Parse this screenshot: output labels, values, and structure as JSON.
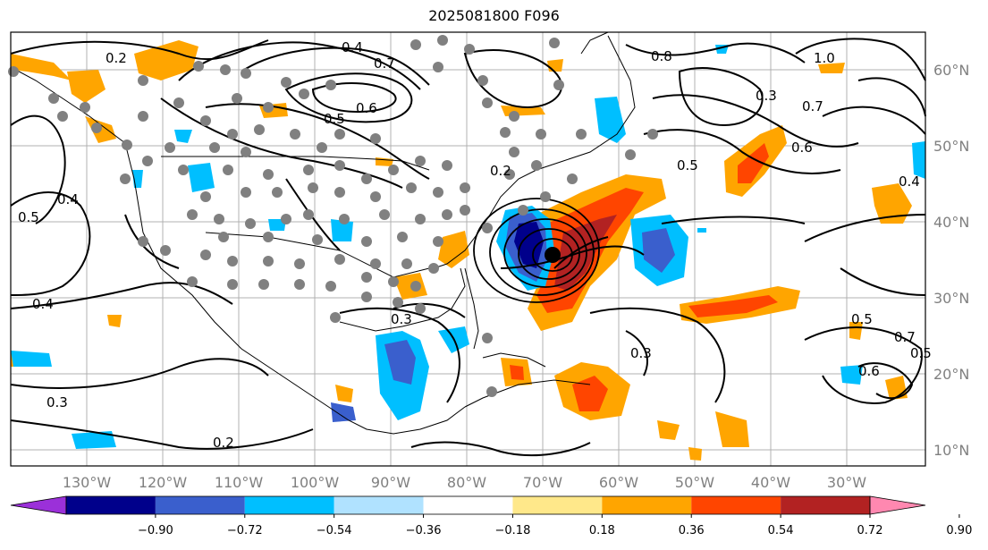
{
  "title": "2025081800 F096",
  "axes": {
    "lon_labels": [
      "130°W",
      "120°W",
      "110°W",
      "100°W",
      "90°W",
      "80°W",
      "70°W",
      "60°W",
      "50°W",
      "40°W",
      "30°W"
    ],
    "lat_labels": [
      "60°N",
      "50°N",
      "40°N",
      "30°N",
      "20°N",
      "10°N"
    ]
  },
  "colorbar": {
    "ticks": [
      "−0.90",
      "−0.72",
      "−0.54",
      "−0.36",
      "−0.18",
      "0.18",
      "0.36",
      "0.54",
      "0.72",
      "0.90"
    ],
    "colors": [
      "#9b30d9",
      "#00008b",
      "#3a5fcd",
      "#00bfff",
      "#b0e2ff",
      "#ffffff",
      "#ffe88a",
      "#ffa500",
      "#ff4500",
      "#b22222",
      "#ff88b0"
    ]
  },
  "contour_labels": [
    "0.2",
    "0.4",
    "0.7",
    "0.5",
    "0.6",
    "0.8",
    "1.0",
    "0.7",
    "0.6",
    "0.5",
    "0.4",
    "0.4",
    "0.5",
    "0.4",
    "0.3",
    "0.3",
    "0.2",
    "0.3",
    "0.5",
    "0.7",
    "0.5",
    "0.6",
    "0.2",
    "0.3"
  ],
  "fill_colors": {
    "neg_light": "#00bfff",
    "neg_mid": "#3a5fcd",
    "neg_dark": "#00008b",
    "pos_light": "#ffa500",
    "pos_mid": "#ff4500",
    "pos_dark": "#b22222",
    "pos_pale": "#ffe88a",
    "dots": "#808080"
  }
}
